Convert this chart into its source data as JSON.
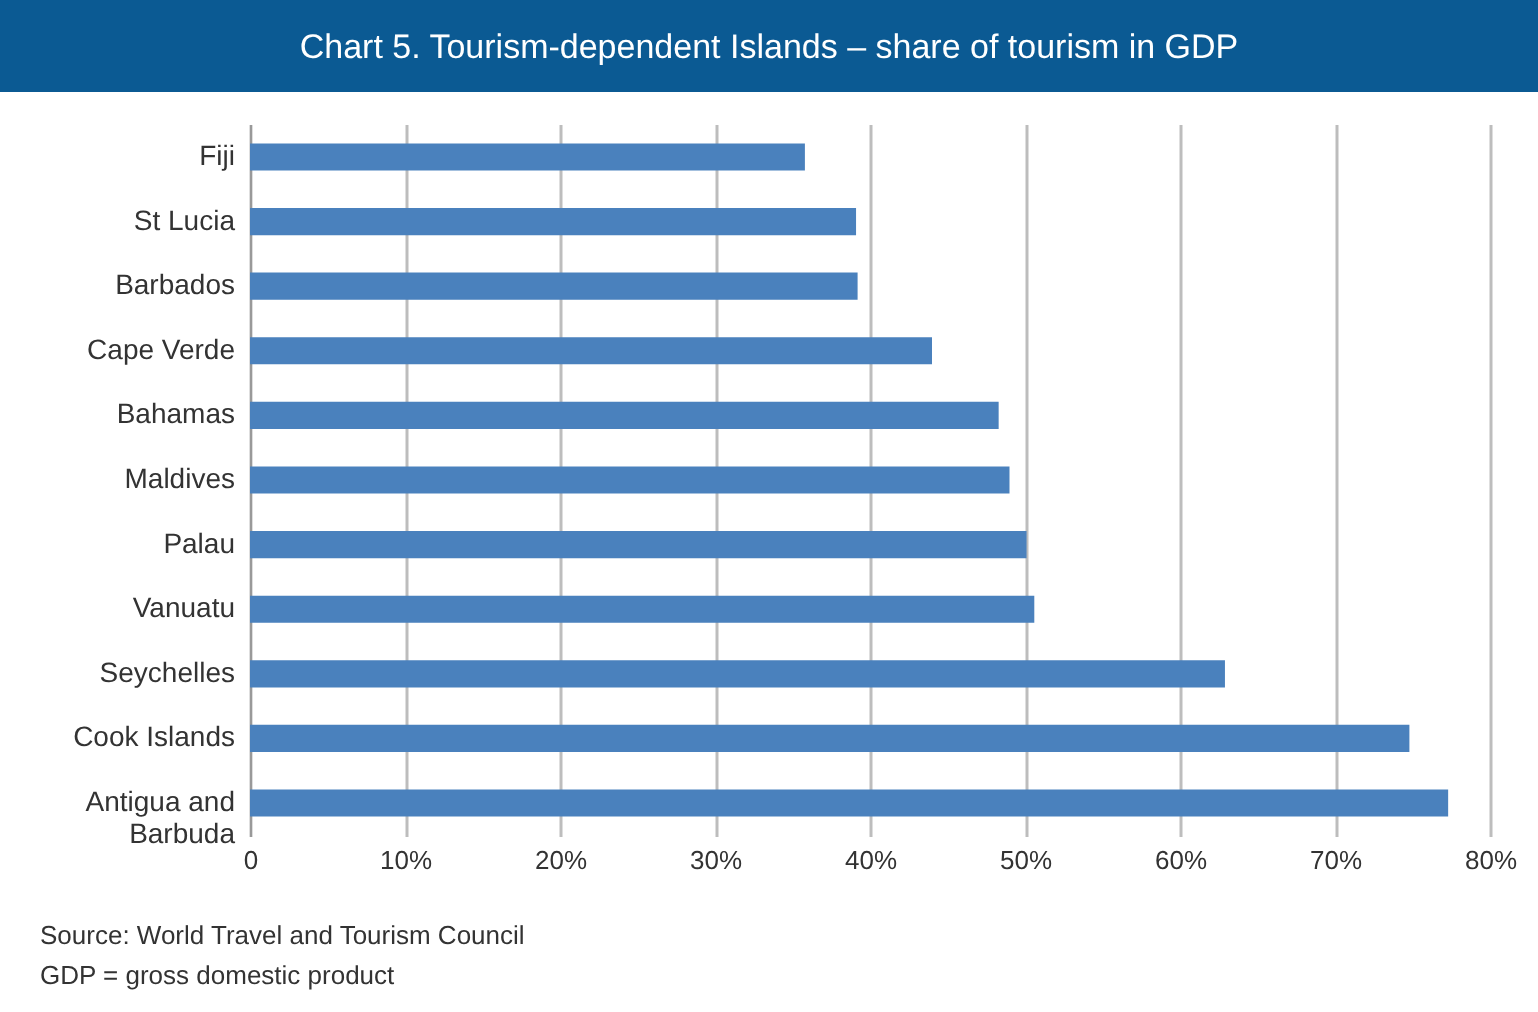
{
  "chart_data": {
    "type": "bar",
    "orientation": "horizontal",
    "title": "Chart 5. Tourism-dependent Islands – share of tourism in GDP",
    "categories": [
      "Fiji",
      "St Lucia",
      "Barbados",
      "Cape Verde",
      "Bahamas",
      "Maldives",
      "Palau",
      "Vanuatu",
      "Seychelles",
      "Cook Islands",
      "Antigua and Barbuda"
    ],
    "values": [
      35.8,
      39.1,
      39.2,
      44.0,
      48.3,
      49.0,
      50.1,
      50.6,
      62.9,
      74.8,
      77.3
    ],
    "color": "#4a81bd",
    "xlim": [
      0,
      80
    ],
    "xticks": [
      {
        "value": 0,
        "label": "0"
      },
      {
        "value": 10,
        "label": "10%"
      },
      {
        "value": 20,
        "label": "20%"
      },
      {
        "value": 30,
        "label": "30%"
      },
      {
        "value": 40,
        "label": "40%"
      },
      {
        "value": 50,
        "label": "50%"
      },
      {
        "value": 60,
        "label": "60%"
      },
      {
        "value": 70,
        "label": "70%"
      },
      {
        "value": 80,
        "label": "80%"
      }
    ],
    "grid": "x",
    "annotations": [
      "Source: World Travel and Tourism Council",
      "GDP = gross domestic product"
    ]
  }
}
